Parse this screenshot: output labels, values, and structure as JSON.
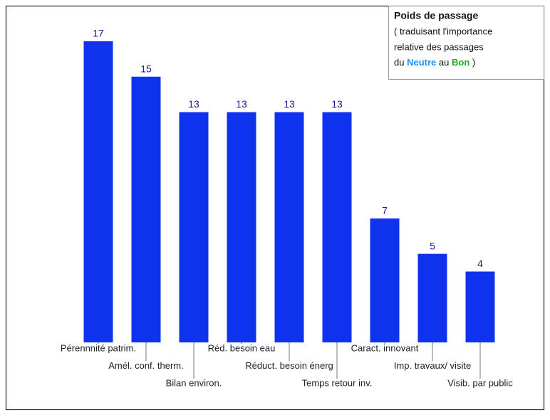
{
  "chart_data": {
    "type": "bar",
    "categories": [
      "Pérennnité patrim.",
      "Amél. conf. therm.",
      "Bilan environ.",
      "Réd. besoin eau",
      "Réduct. besoin énerg",
      "Temps retour inv.",
      "Caract. innovant",
      "Imp. travaux/ visite",
      "Visib. par public"
    ],
    "values": [
      17,
      15,
      13,
      13,
      13,
      13,
      7,
      5,
      4
    ],
    "color": "#0f32ee",
    "note": {
      "title": "Poids de passage",
      "line1": "( traduisant l'importance",
      "line2": "relative des passages",
      "line3": [
        "du",
        "Neutre",
        "au",
        "Bon",
        ")"
      ],
      "neutre_color": "#1e90ff",
      "bon_color": "#22aa22"
    }
  }
}
